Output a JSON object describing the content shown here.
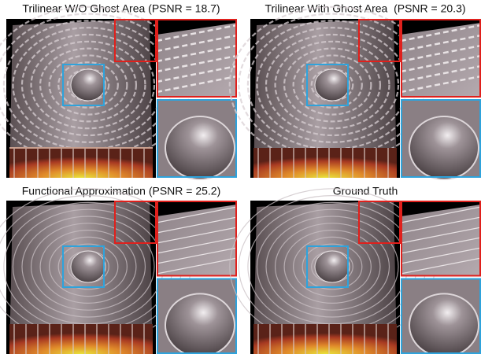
{
  "panels": [
    {
      "title": "Trilinear W/O Ghost Area (PSNR = 18.7)"
    },
    {
      "title": "Trilinear With Ghost Area  (PSNR = 20.3)"
    },
    {
      "title": "Functional Approximation (PSNR = 25.2)"
    },
    {
      "title": "Ground Truth"
    }
  ]
}
